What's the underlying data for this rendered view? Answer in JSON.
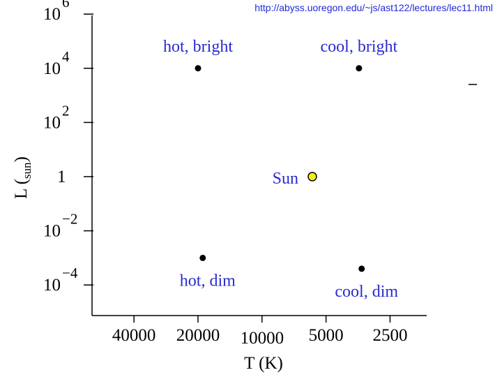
{
  "source_url": "http://abyss.uoregon.edu/~js/ast122/lectures/lec11.html",
  "chart_data": {
    "type": "scatter",
    "title": "",
    "xlabel": "T (K)",
    "ylabel_main": "L",
    "ylabel_sub": "sun",
    "x_axis": {
      "scale": "log-reversed",
      "ticks": [
        {
          "value": 40000,
          "label": "40000"
        },
        {
          "value": 20000,
          "label": "20000"
        },
        {
          "value": 10000,
          "label": "10000"
        },
        {
          "value": 5000,
          "label": "5000"
        },
        {
          "value": 2500,
          "label": "2500"
        }
      ]
    },
    "y_axis": {
      "scale": "log",
      "ticks": [
        {
          "exp": 6,
          "base": "10",
          "sup": "6"
        },
        {
          "exp": 4,
          "base": "10",
          "sup": "4"
        },
        {
          "exp": 2,
          "base": "10",
          "sup": "2"
        },
        {
          "exp": 0,
          "base": "1",
          "sup": ""
        },
        {
          "exp": -2,
          "base": "10",
          "sup": "−2"
        },
        {
          "exp": -4,
          "base": "10",
          "sup": "−4"
        }
      ]
    },
    "points": [
      {
        "label": "hot, bright",
        "T": 20000,
        "logL": 4.0,
        "color": "#000000",
        "label_pos": "above-left"
      },
      {
        "label": "cool, bright",
        "T": 3500,
        "logL": 4.0,
        "color": "#000000",
        "label_pos": "above-left"
      },
      {
        "label": "Sun",
        "T": 5800,
        "logL": 0.0,
        "color": "#f2ef1c",
        "label_pos": "left"
      },
      {
        "label": "hot, dim",
        "T": 19000,
        "logL": -3.0,
        "color": "#000000",
        "label_pos": "below-left"
      },
      {
        "label": "cool, dim",
        "T": 3400,
        "logL": -3.4,
        "color": "#000000",
        "label_pos": "below-left"
      }
    ],
    "colors": {
      "annotation": "#2a2ad0",
      "axis": "#000000",
      "sun_fill": "#f2ef1c",
      "url": "#1f2ad6"
    }
  }
}
